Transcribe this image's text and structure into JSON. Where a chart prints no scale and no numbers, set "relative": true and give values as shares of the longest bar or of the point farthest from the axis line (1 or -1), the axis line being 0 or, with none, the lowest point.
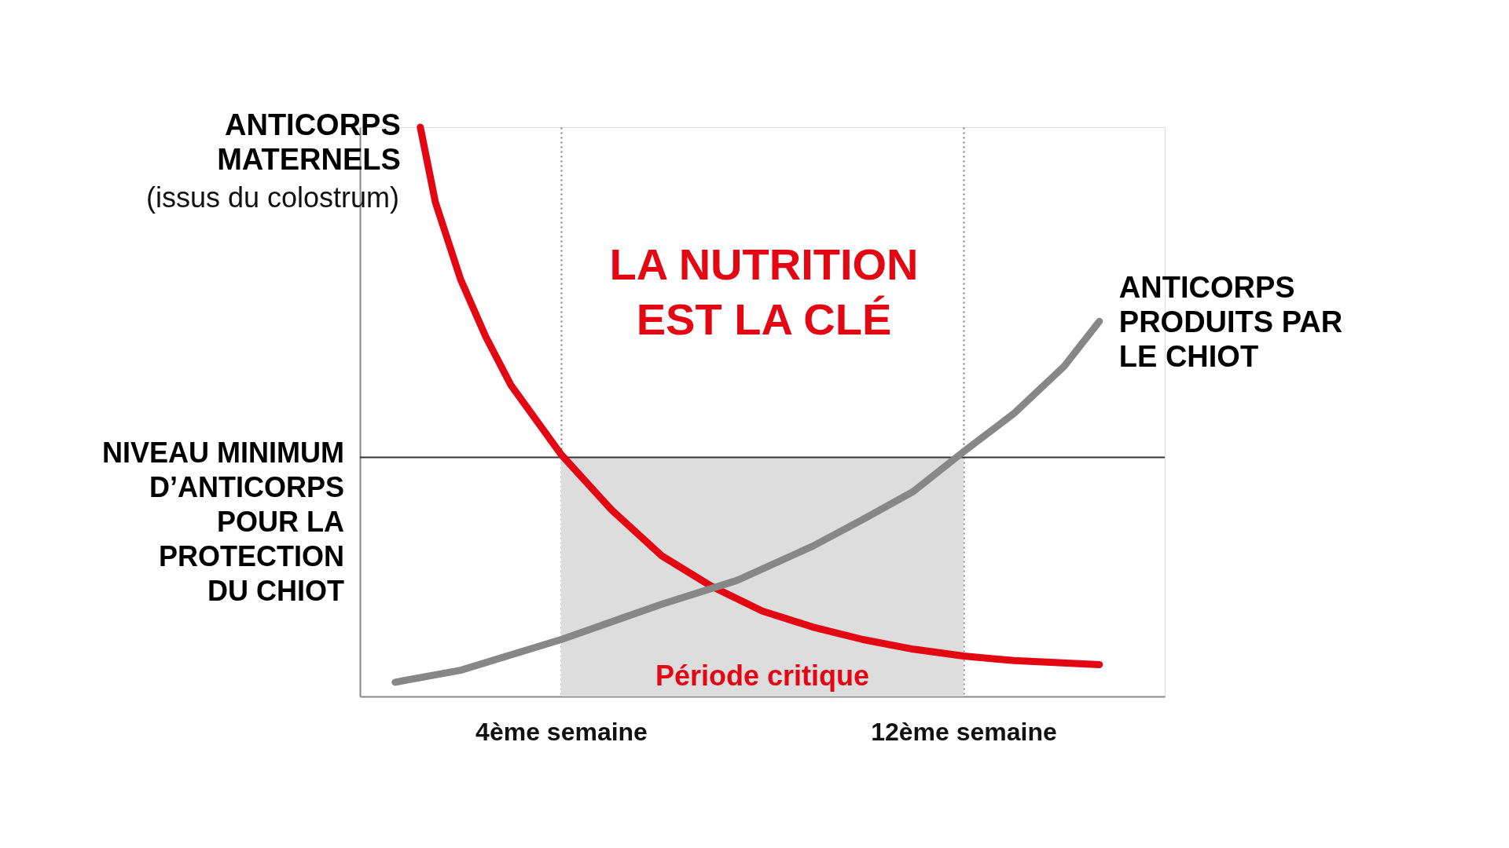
{
  "chart_data": {
    "type": "line",
    "relative": true,
    "grid": "x",
    "tick_labels": "x",
    "xlim": [
      0,
      16
    ],
    "xticks": [
      {
        "value": 4,
        "label": "4ème semaine"
      },
      {
        "value": 12,
        "label": "12ème semaine"
      }
    ],
    "series": [
      {
        "name": "ANTICORPS\nMATERNELS",
        "color": "#e30613",
        "x": [
          1.2,
          1.5,
          2,
          2.5,
          3,
          4,
          5,
          6,
          7,
          8,
          9,
          10,
          11,
          12,
          13,
          14.7
        ],
        "values": [
          1.0,
          0.868,
          0.733,
          0.632,
          0.547,
          0.425,
          0.328,
          0.247,
          0.193,
          0.15,
          0.122,
          0.1,
          0.083,
          0.071,
          0.063,
          0.056
        ]
      },
      {
        "name": "ANTICORPS\nPRODUITS PAR\nLE CHIOT",
        "color": "#878787",
        "x": [
          0.7,
          2,
          4,
          6,
          7.5,
          9,
          10,
          11,
          12,
          13,
          14,
          14.7
        ],
        "values": [
          0.025,
          0.046,
          0.1,
          0.162,
          0.204,
          0.264,
          0.311,
          0.36,
          0.43,
          0.497,
          0.58,
          0.659
        ]
      }
    ],
    "ref_lines": [
      {
        "axis": "y",
        "value": 0.42,
        "label": "NIVEAU MINIMUM\nD’ANTICORPS\nPOUR LA\nPROTECTION\nDU CHIOT",
        "color": "#333333",
        "line_style": "solid"
      }
    ],
    "bands": [
      {
        "axis": "x",
        "from": 4,
        "to": 12,
        "label": "Période critique",
        "color": "#dddddd"
      }
    ],
    "annotations": [
      "(issus du colostrum)",
      "LA NUTRITION\nEST LA CLÉ"
    ]
  }
}
